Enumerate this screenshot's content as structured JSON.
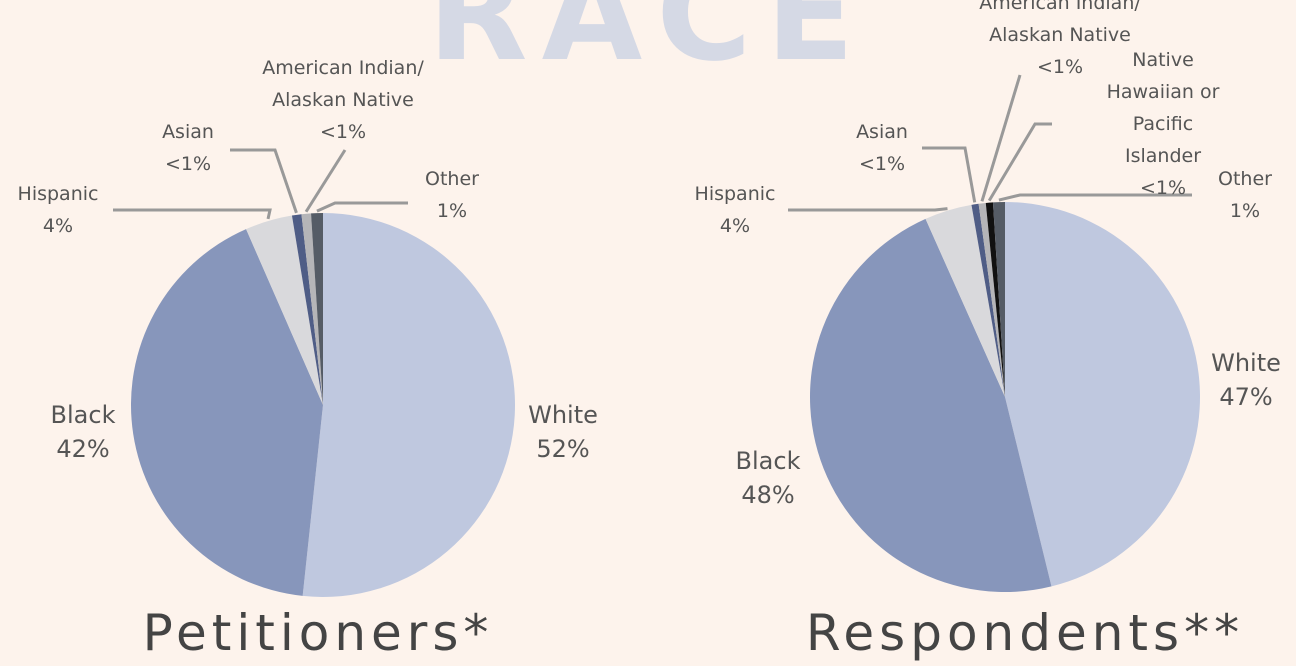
{
  "page_title": "RACE",
  "chart_data": [
    {
      "type": "pie",
      "title": "Petitioners*",
      "categories": [
        "White",
        "Black",
        "Hispanic",
        "Asian",
        "American Indian/\nAlaskan Native",
        "Other"
      ],
      "values": [
        52,
        42,
        4,
        0.8,
        0.8,
        1
      ],
      "value_labels": [
        "52%",
        "42%",
        "4%",
        "<1%",
        "<1%",
        "1%"
      ],
      "colors": [
        "#bfc8df",
        "#8796bb",
        "#d9d9dc",
        "#4f5d86",
        "#b5b5b8",
        "#555c66"
      ]
    },
    {
      "type": "pie",
      "title": "Respondents**",
      "categories": [
        "White",
        "Black",
        "Hispanic",
        "Asian",
        "American Indian/\nAlaskan Native",
        "Native Hawaiian or\nPacific Islander",
        "Other"
      ],
      "values": [
        47,
        48,
        4,
        0.6,
        0.6,
        0.6,
        1
      ],
      "value_labels": [
        "47%",
        "48%",
        "4%",
        "<1%",
        "<1%",
        "<1%",
        "1%"
      ],
      "colors": [
        "#bfc8df",
        "#8796bb",
        "#d9d9dc",
        "#4f5d86",
        "#b5b5b8",
        "#111111",
        "#555c66"
      ]
    }
  ]
}
